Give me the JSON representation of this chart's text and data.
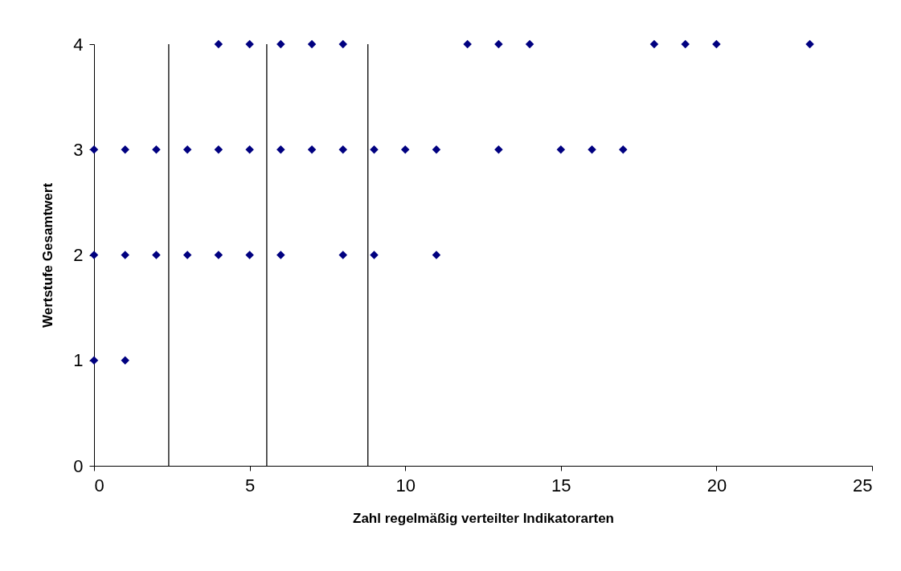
{
  "chart_data": {
    "type": "scatter",
    "xlabel": "Zahl regelmäßig verteilter Indikatorarten",
    "ylabel": "Wertstufe Gesamtwert",
    "series": [
      {
        "color": "#000080",
        "x": [
          4,
          5,
          6,
          7,
          8,
          12,
          13,
          14,
          18,
          19,
          20,
          23,
          0,
          1,
          2,
          3,
          4,
          5,
          6,
          7,
          8,
          9,
          10,
          11,
          13,
          15,
          16,
          17,
          0,
          1,
          2,
          3,
          4,
          5,
          6,
          8,
          9,
          11,
          0,
          1
        ],
        "values": [
          4,
          4,
          4,
          4,
          4,
          4,
          4,
          4,
          4,
          4,
          4,
          4,
          3,
          3,
          3,
          3,
          3,
          3,
          3,
          3,
          3,
          3,
          3,
          3,
          3,
          3,
          3,
          3,
          2,
          2,
          2,
          2,
          2,
          2,
          2,
          2,
          2,
          2,
          1,
          1
        ]
      }
    ],
    "xlim": [
      0,
      25
    ],
    "xticks": [
      0,
      5,
      10,
      15,
      20,
      25
    ],
    "ylim": [
      0,
      4
    ],
    "yticks": [
      0,
      1,
      2,
      3,
      4
    ],
    "ref_lines": [
      {
        "axis": "x",
        "value": 2.4,
        "color": "#000000"
      },
      {
        "axis": "x",
        "value": 5.55,
        "color": "#000000"
      },
      {
        "axis": "x",
        "value": 8.8,
        "color": "#000000"
      }
    ],
    "grid": false,
    "marker": "diamond",
    "legend": false
  }
}
